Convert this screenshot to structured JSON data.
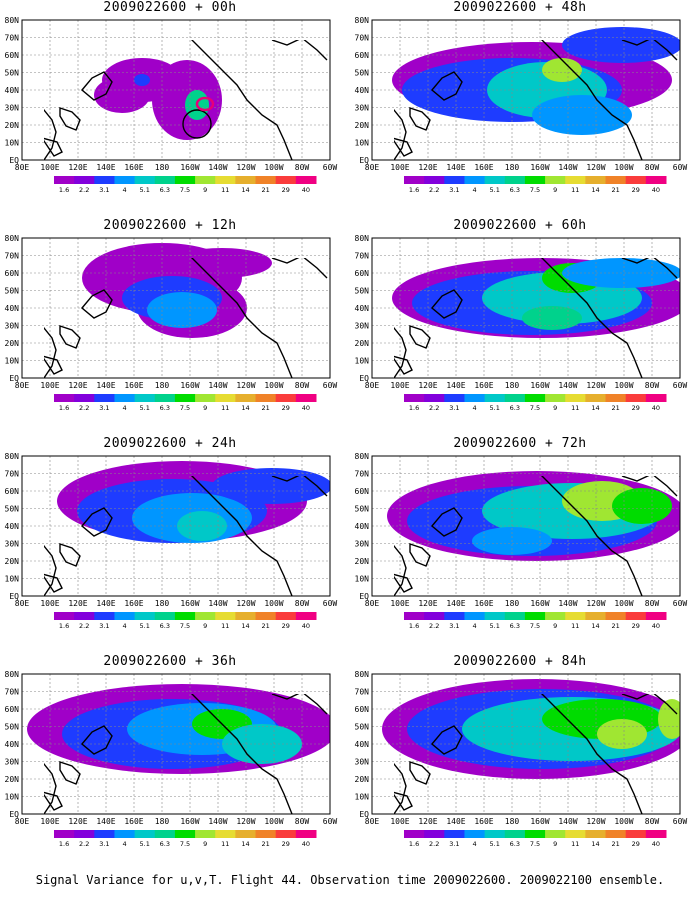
{
  "caption": "Signal Variance for u,v,T. Flight 44. Observation time 2009022600. 2009022100 ensemble.",
  "lat_labels": [
    "80N",
    "70N",
    "60N",
    "50N",
    "40N",
    "30N",
    "20N",
    "10N",
    "EQ"
  ],
  "lon_labels": [
    "80E",
    "100E",
    "120E",
    "140E",
    "160E",
    "180",
    "160W",
    "140W",
    "120W",
    "100W",
    "80W",
    "60W"
  ],
  "colorbar": {
    "levels": [
      "1.6",
      "2.2",
      "3.1",
      "4",
      "5.1",
      "6.3",
      "7.5",
      "9",
      "11",
      "14",
      "21",
      "29",
      "40"
    ],
    "colors": [
      "#a000c8",
      "#8200dc",
      "#1e3cff",
      "#0096ff",
      "#00c8c8",
      "#00d28c",
      "#00dc00",
      "#a0e632",
      "#e6dc32",
      "#e6af2d",
      "#f08228",
      "#fa3c3c",
      "#f00082"
    ]
  },
  "panels": [
    {
      "title": "2009022600 + 00h"
    },
    {
      "title": "2009022600 + 48h"
    },
    {
      "title": "2009022600 + 12h"
    },
    {
      "title": "2009022600 + 60h"
    },
    {
      "title": "2009022600 + 24h"
    },
    {
      "title": "2009022600 + 72h"
    },
    {
      "title": "2009022600 + 36h"
    },
    {
      "title": "2009022600 + 84h"
    }
  ]
}
